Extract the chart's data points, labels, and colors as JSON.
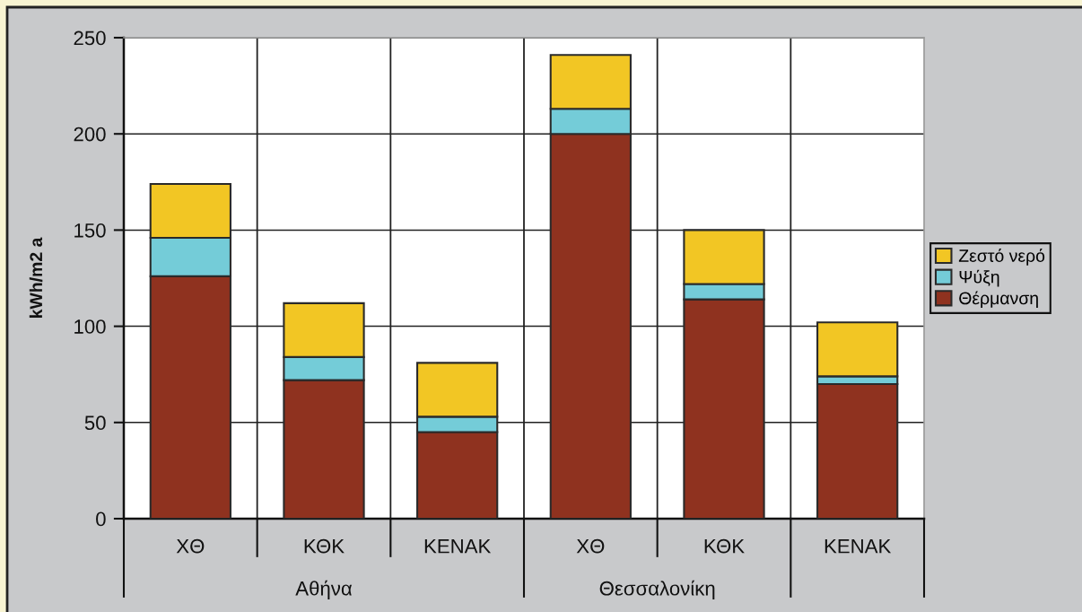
{
  "chart_data": {
    "type": "bar",
    "stacked": true,
    "ylabel": "kWh/m2 a",
    "categories": [
      "ΧΘ",
      "ΚΘΚ",
      "ΚΕΝΑΚ",
      "ΧΘ",
      "ΚΘΚ",
      "ΚΕΝΑΚ"
    ],
    "series": [
      {
        "name": "Θέρμανση",
        "color": "#8f321f",
        "values": [
          126,
          72,
          45,
          200,
          114,
          70
        ]
      },
      {
        "name": "Ψύξη",
        "color": "#74ccd8",
        "values": [
          20,
          12,
          8,
          13,
          8,
          4
        ]
      },
      {
        "name": "Ζεστό νερό",
        "color": "#f2c624",
        "values": [
          28,
          28,
          28,
          28,
          28,
          28
        ]
      }
    ],
    "ylim": [
      0,
      250
    ],
    "yticks": [
      0,
      50,
      100,
      150,
      200,
      250
    ],
    "grid": true,
    "legend": "right",
    "annotations": [
      "Αθήνα",
      "Θεσσαλονίκη"
    ]
  }
}
